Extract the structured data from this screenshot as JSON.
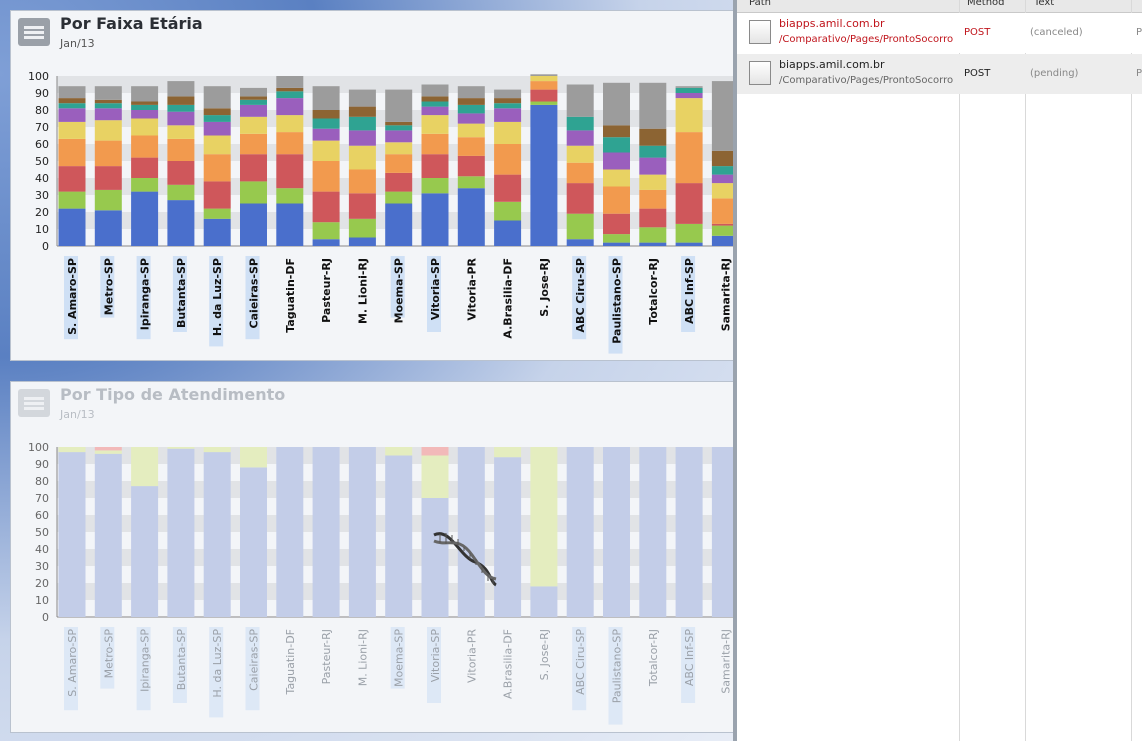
{
  "colors": {
    "age_bands": [
      "#4a6fcc",
      "#97c94e",
      "#cf575b",
      "#f29a4e",
      "#e8d263",
      "#9a5fbd",
      "#2fa392",
      "#8c6433",
      "#9c9c9c"
    ],
    "attendance_types": [
      "#c3cde8",
      "#e4edbf",
      "#f2b9b9"
    ],
    "highlight": "#cfe0f5"
  },
  "panel1": {
    "title": "Por Faixa Etária",
    "subtitle": "Jan/13",
    "chart_data": {
      "type": "bar",
      "stacked": true,
      "ylim": [
        0,
        100
      ],
      "yticks": [
        0,
        10,
        20,
        30,
        40,
        50,
        60,
        70,
        80,
        90,
        100
      ],
      "categories": [
        "S. Amaro-SP",
        "Metro-SP",
        "Ipiranga-SP",
        "Butanta-SP",
        "H. da Luz-SP",
        "Caieiras-SP",
        "Taguatin-DF",
        "Pasteur-RJ",
        "M. Lioni-RJ",
        "Moema-SP",
        "Vitoria-SP",
        "Vitoria-PR",
        "A.Brasilia-DF",
        "S. Jose-RJ",
        "ABC Ciru-SP",
        "Paulistano-SP",
        "Totalcor-RJ",
        "ABC Inf-SP",
        "Samarita-RJ"
      ],
      "highlighted": [
        "S. Amaro-SP",
        "Metro-SP",
        "Ipiranga-SP",
        "Butanta-SP",
        "H. da Luz-SP",
        "Caieiras-SP",
        "Moema-SP",
        "Vitoria-SP",
        "ABC Ciru-SP",
        "Paulistano-SP",
        "ABC Inf-SP"
      ],
      "series": [
        {
          "values": [
            22,
            21,
            32,
            27,
            16,
            25,
            25,
            4,
            5,
            25,
            31,
            34,
            15,
            83,
            4,
            2,
            2,
            2,
            6
          ]
        },
        {
          "values": [
            10,
            12,
            8,
            9,
            6,
            13,
            9,
            10,
            11,
            7,
            9,
            7,
            11,
            2,
            15,
            5,
            9,
            11,
            6
          ]
        },
        {
          "values": [
            15,
            14,
            12,
            14,
            16,
            16,
            20,
            18,
            15,
            11,
            14,
            12,
            16,
            7,
            18,
            12,
            11,
            24,
            1
          ]
        },
        {
          "values": [
            16,
            15,
            13,
            13,
            16,
            12,
            13,
            18,
            14,
            11,
            12,
            11,
            18,
            5,
            12,
            16,
            11,
            30,
            15
          ]
        },
        {
          "values": [
            10,
            12,
            10,
            8,
            11,
            10,
            10,
            12,
            14,
            7,
            11,
            8,
            13,
            3,
            10,
            10,
            9,
            20,
            9
          ]
        },
        {
          "values": [
            8,
            7,
            5,
            8,
            8,
            7,
            10,
            7,
            9,
            7,
            5,
            6,
            8,
            0,
            9,
            10,
            10,
            3,
            5
          ]
        },
        {
          "values": [
            3,
            3,
            3,
            4,
            4,
            3,
            4,
            6,
            8,
            3,
            3,
            5,
            3,
            0,
            8,
            9,
            7,
            3,
            5
          ]
        },
        {
          "values": [
            3,
            2,
            2,
            5,
            4,
            2,
            2,
            5,
            6,
            2,
            3,
            4,
            3,
            0,
            0,
            7,
            10,
            0,
            9
          ]
        },
        {
          "values": [
            7,
            8,
            9,
            9,
            13,
            5,
            7,
            14,
            10,
            19,
            7,
            7,
            5,
            1,
            19,
            25,
            27,
            1,
            41
          ]
        }
      ]
    }
  },
  "panel2": {
    "title": "Por Tipo de Atendimento",
    "subtitle": "Jan/13",
    "chart_data": {
      "type": "bar",
      "stacked": true,
      "ylim": [
        0,
        100
      ],
      "yticks": [
        0,
        10,
        20,
        30,
        40,
        50,
        60,
        70,
        80,
        90,
        100
      ],
      "categories": [
        "S. Amaro-SP",
        "Metro-SP",
        "Ipiranga-SP",
        "Butanta-SP",
        "H. da Luz-SP",
        "Caieiras-SP",
        "Taguatin-DF",
        "Pasteur-RJ",
        "M. Lioni-RJ",
        "Moema-SP",
        "Vitoria-SP",
        "Vitoria-PR",
        "A.Brasilia-DF",
        "S. Jose-RJ",
        "ABC Ciru-SP",
        "Paulistano-SP",
        "Totalcor-RJ",
        "ABC Inf-SP",
        "Samarita-RJ"
      ],
      "highlighted": [
        "S. Amaro-SP",
        "Metro-SP",
        "Ipiranga-SP",
        "Butanta-SP",
        "H. da Luz-SP",
        "Caieiras-SP",
        "Moema-SP",
        "Vitoria-SP",
        "ABC Ciru-SP",
        "Paulistano-SP",
        "ABC Inf-SP"
      ],
      "series": [
        {
          "values": [
            97,
            96,
            77,
            99,
            97,
            88,
            100,
            100,
            100,
            95,
            70,
            100,
            94,
            18,
            100,
            100,
            100,
            100,
            100
          ]
        },
        {
          "values": [
            3,
            2,
            23,
            1,
            3,
            12,
            0,
            0,
            0,
            5,
            25,
            0,
            6,
            82,
            0,
            0,
            0,
            0,
            0
          ]
        },
        {
          "values": [
            0,
            2,
            0,
            0,
            0,
            0,
            0,
            0,
            0,
            0,
            5,
            0,
            0,
            0,
            0,
            0,
            0,
            0,
            0
          ]
        }
      ]
    }
  },
  "devtools": {
    "columns": [
      "Path",
      "Method",
      "Text"
    ],
    "requests": [
      {
        "host": "biapps.amil.com.br",
        "path": "/Comparativo/Pages/ProntoSocorro",
        "method": "POST",
        "status": "(canceled)",
        "extra": "Pe",
        "state": "error"
      },
      {
        "host": "biapps.amil.com.br",
        "path": "/Comparativo/Pages/ProntoSocorro",
        "method": "POST",
        "status": "(pending)",
        "extra": "Pe",
        "state": "pending"
      }
    ]
  }
}
